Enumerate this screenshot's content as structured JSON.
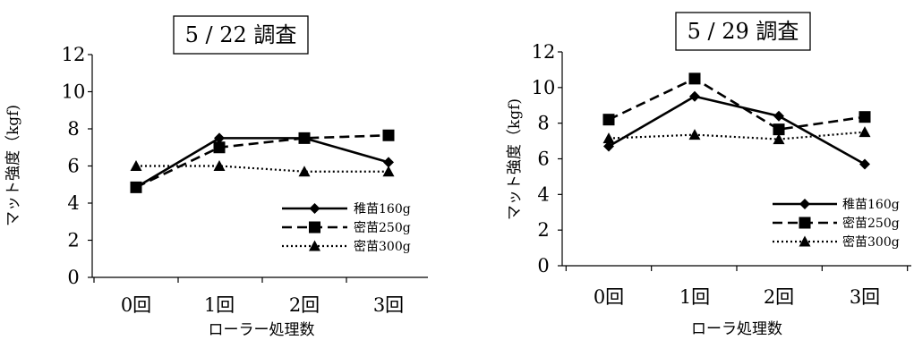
{
  "chart_data": [
    {
      "type": "line",
      "title": "5 / 22 調査",
      "xlabel": "ローラー処理数",
      "ylabel": "マット強度（kgf)",
      "categories": [
        "0回",
        "1回",
        "2回",
        "3回"
      ],
      "ylim": [
        0,
        12
      ],
      "yticks": [
        0,
        2,
        4,
        6,
        8,
        10,
        12
      ],
      "grid": false,
      "legend": "bottom-right",
      "series": [
        {
          "name": "稚苗160g",
          "values": [
            4.85,
            7.5,
            7.5,
            6.2
          ],
          "line_style": "solid",
          "marker": "diamond",
          "color": "#000000"
        },
        {
          "name": "密苗250g",
          "values": [
            4.85,
            7.0,
            7.5,
            7.65
          ],
          "line_style": "dashed",
          "marker": "square",
          "color": "#000000"
        },
        {
          "name": "密苗300g",
          "values": [
            6.0,
            6.0,
            5.7,
            5.7
          ],
          "line_style": "dotted",
          "marker": "triangle",
          "color": "#000000"
        }
      ]
    },
    {
      "type": "line",
      "title": "5 / 29 調査",
      "xlabel": "ローラ処理数",
      "ylabel": "マット強度（kgf)",
      "categories": [
        "0回",
        "1回",
        "2回",
        "3回"
      ],
      "ylim": [
        0,
        12
      ],
      "yticks": [
        0,
        2,
        4,
        6,
        8,
        10,
        12
      ],
      "grid": false,
      "legend": "bottom-right",
      "series": [
        {
          "name": "稚苗160g",
          "values": [
            6.7,
            9.5,
            8.4,
            5.7
          ],
          "line_style": "solid",
          "marker": "diamond",
          "color": "#000000"
        },
        {
          "name": "密苗250g",
          "values": [
            8.2,
            10.5,
            7.65,
            8.35
          ],
          "line_style": "dashed",
          "marker": "square",
          "color": "#000000"
        },
        {
          "name": "密苗300g",
          "values": [
            7.15,
            7.35,
            7.1,
            7.5
          ],
          "line_style": "dotted",
          "marker": "triangle",
          "color": "#000000"
        }
      ]
    }
  ]
}
